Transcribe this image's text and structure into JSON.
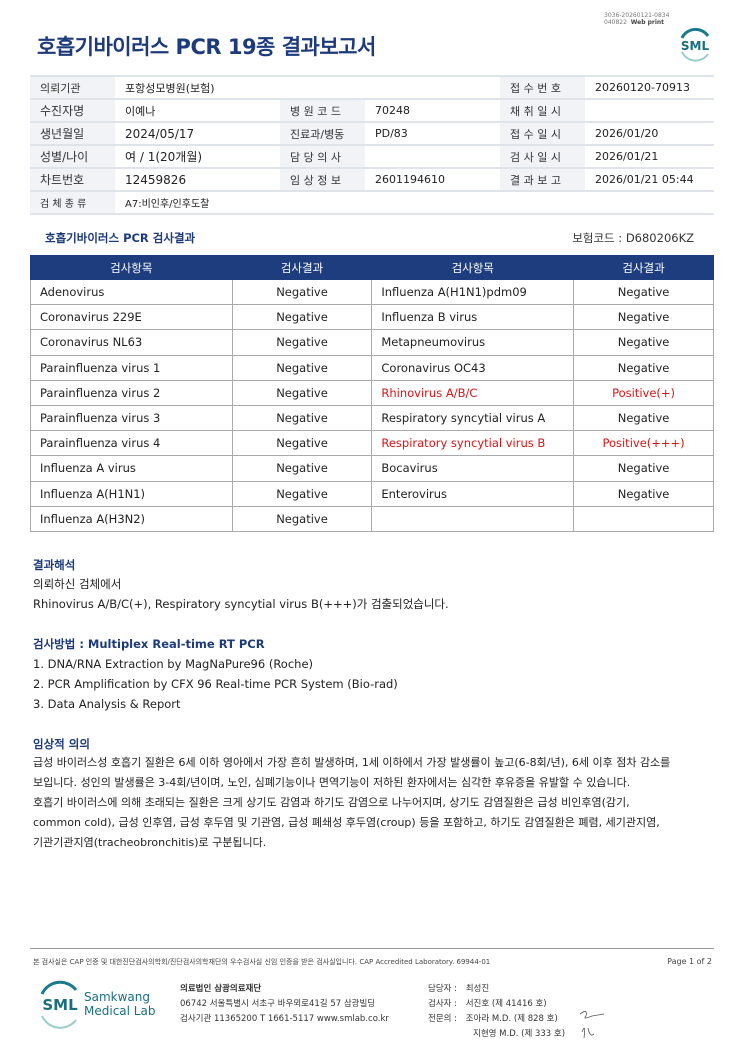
{
  "header": {
    "title": "호흡기바이러스 PCR 19종 결과보고서",
    "print_id": "3036-20260121-0834",
    "print_id2": "040822",
    "print_mode": "Web print",
    "logo": "SML"
  },
  "info": {
    "requester_label": "의뢰기관",
    "requester": "포항성모병원(보험)",
    "receipt_no_label": "접 수 번 호",
    "receipt_no": "20260120-70913",
    "patient_label": "수진자명",
    "patient": "이예나",
    "hospital_code_label": "병 원 코 드",
    "hospital_code": "70248",
    "collect_label": "채 취 일 시",
    "collect": "",
    "dob_label": "생년월일",
    "dob": "2024/05/17",
    "dept_label": "진료과/병동",
    "dept": "PD/83",
    "receipt_date_label": "접 수 일 시",
    "receipt_date": "2026/01/20",
    "sex_age_label": "성별/나이",
    "sex_age": "여 / 1(20개월)",
    "doctor_label": "담 당 의 사",
    "doctor": "",
    "test_date_label": "검 사 일 시",
    "test_date": "2026/01/21",
    "chart_label": "차트번호",
    "chart": "12459826",
    "clinical_label": "임 상 정 보",
    "clinical": "2601194610",
    "report_label": "결 과 보 고",
    "report": "2026/01/21 05:44",
    "specimen_label": "검 체 종 류",
    "specimen": "A7:비인후/인후도찰"
  },
  "results": {
    "title": "호흡기바이러스 PCR 검사결과",
    "insurance_code": "보험코드 : D680206KZ",
    "headers": [
      "검사항목",
      "검사결과",
      "검사항목",
      "검사결과"
    ],
    "left": [
      [
        "Adenovirus",
        "Negative"
      ],
      [
        "Coronavirus 229E",
        "Negative"
      ],
      [
        "Coronavirus NL63",
        "Negative"
      ],
      [
        "Parainfluenza virus 1",
        "Negative"
      ],
      [
        "Parainfluenza virus 2",
        "Negative"
      ],
      [
        "Parainfluenza virus 3",
        "Negative"
      ],
      [
        "Parainfluenza virus 4",
        "Negative"
      ],
      [
        "Influenza A virus",
        "Negative"
      ],
      [
        "Influenza A(H1N1)",
        "Negative"
      ],
      [
        "Influenza A(H3N2)",
        "Negative"
      ]
    ],
    "right": [
      [
        "Influenza A(H1N1)pdm09",
        "Negative"
      ],
      [
        "Influenza B virus",
        "Negative"
      ],
      [
        "Metapneumovirus",
        "Negative"
      ],
      [
        "Coronavirus OC43",
        "Negative"
      ],
      [
        "Rhinovirus A/B/C",
        "Positive(+)"
      ],
      [
        "Respiratory syncytial virus A",
        "Negative"
      ],
      [
        "Respiratory syncytial virus B",
        "Positive(+++)"
      ],
      [
        "Bocavirus",
        "Negative"
      ],
      [
        "Enterovirus",
        "Negative"
      ],
      [
        "",
        ""
      ]
    ],
    "positive_color": "#d01818"
  },
  "interpretation": {
    "title": "결과해석",
    "line1": "의뢰하신 검체에서",
    "line2": "Rhinovirus A/B/C(+), Respiratory syncytial virus B(+++)가 검출되었습니다."
  },
  "method": {
    "title": "검사방법 : Multiplex Real-time RT PCR",
    "steps": [
      "1. DNA/RNA Extraction by MagNaPure96 (Roche)",
      "2. PCR Amplification by CFX 96 Real-time PCR System (Bio-rad)",
      "3. Data Analysis & Report"
    ]
  },
  "clinical_significance": {
    "title": "임상적 의의",
    "lines": [
      "급성 바이러스성 호흡기 질환은 6세 이하 영아에서 가장 흔히 발생하며, 1세 이하에서 가장 발생률이 높고(6-8회/년), 6세 이후 점차 감소를",
      "보입니다. 성인의 발생률은 3-4회/년이며, 노인, 심폐기능이나 면역기능이 저하된 환자에서는 심각한 후유증을 유발할 수 있습니다.",
      "호흡기 바이러스에 의해 초래되는 질환은 크게 상기도 감염과 하기도 감염으로 나누어지며, 상기도 감염질환은 급성 비인후염(감기,",
      "common cold), 급성 인후염, 급성 후두염 및 기관염, 급성 폐쇄성 후두염(croup) 등을 포함하고, 하기도 감염질환은 폐렴, 세기관지염,",
      "기관기관지염(tracheobronchitis)로 구분됩니다."
    ]
  },
  "footer": {
    "note": "본 검사실은 CAP 인증 및 대한진단검사의학회/진단검사의학재단의 우수검사실 신임 인증을 받은 검사실입니다.  CAP Accredited Laboratory. 69944-01",
    "page": "Page 1 of 2",
    "brand1": "Samkwang",
    "brand2": "Medical Lab",
    "logo": "SML",
    "org": "의료법인 삼광의료재단",
    "address": "06742 서울특별시 서초구 바우뫼로41길 57 삼광빌딩",
    "contact": "검사기관 11365200  T 1661-5117  www.smlab.co.kr",
    "manager_label": "담당자 :",
    "manager": "최성진",
    "tester_label": "검사자 :",
    "tester": "서진호 (제 41416 호)",
    "specialist_label": "전문의 :",
    "specialist1": "조아라 M.D. (제 828 호)",
    "specialist2": "지현영 M.D. (제 333 호)"
  }
}
